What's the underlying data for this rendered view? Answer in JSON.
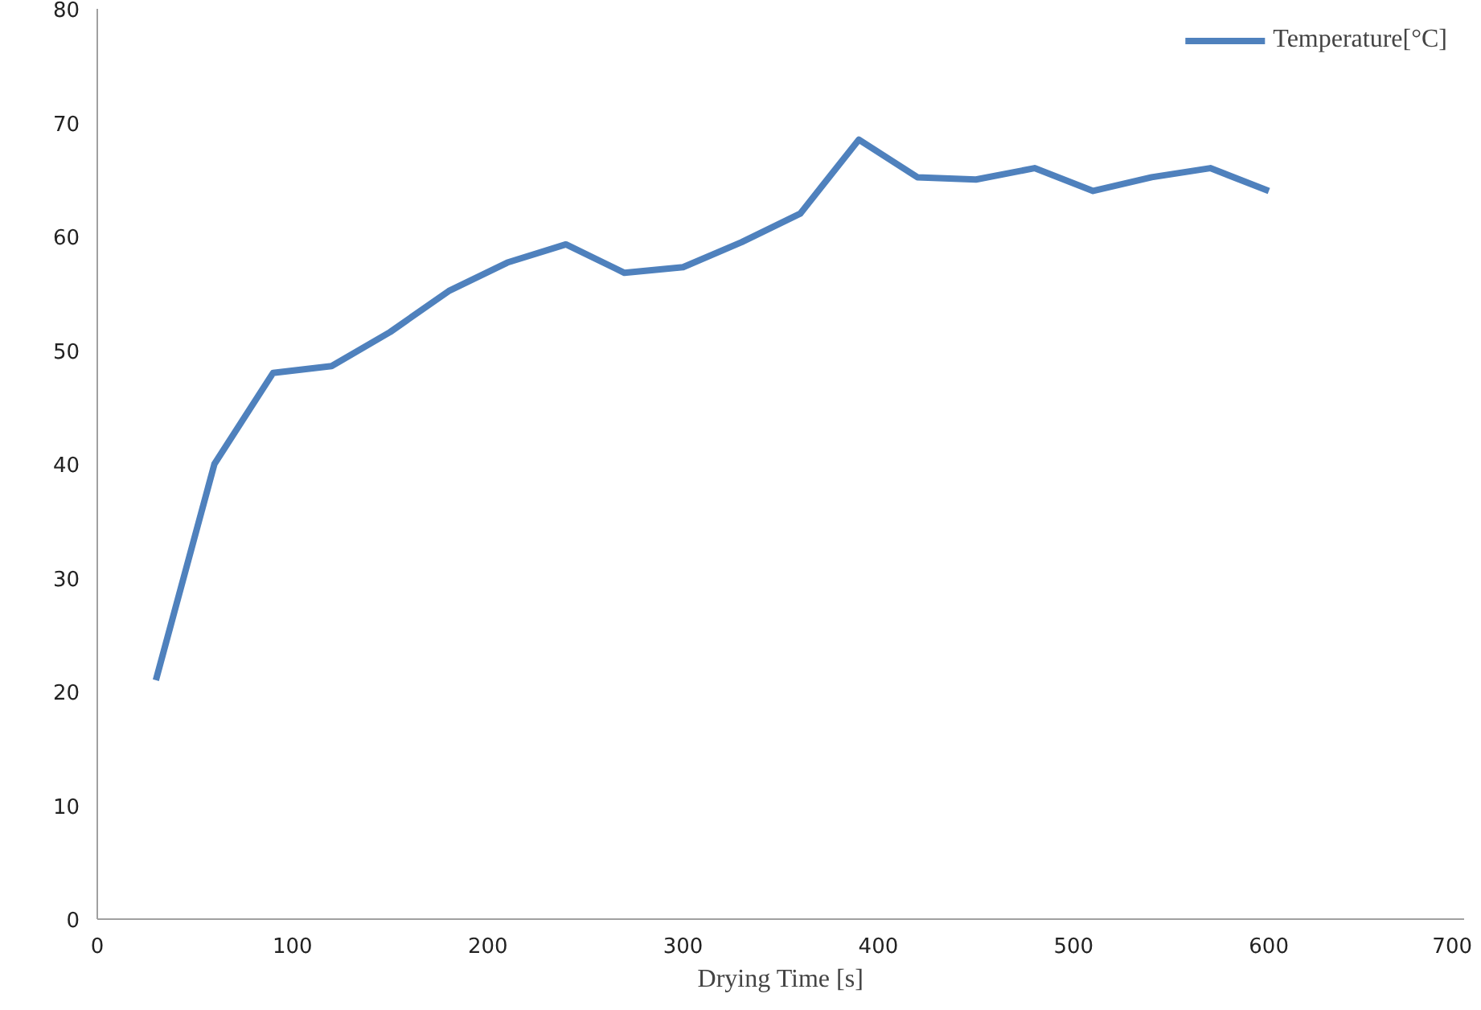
{
  "chart_data": {
    "type": "line",
    "xlabel": "Drying Time [s]",
    "x": [
      30,
      60,
      90,
      120,
      150,
      180,
      210,
      240,
      270,
      300,
      330,
      360,
      390,
      420,
      450,
      480,
      510,
      540,
      570,
      600
    ],
    "series": [
      {
        "name": "Temperature[°C]",
        "color": "#4f81bd",
        "values": [
          21,
          40,
          48,
          48.6,
          51.6,
          55.2,
          57.7,
          59.3,
          56.8,
          57.3,
          59.5,
          62,
          68.5,
          65.2,
          65,
          66,
          64,
          65.2,
          66,
          64
        ]
      }
    ],
    "xlim": [
      0,
      700
    ],
    "xticks": [
      0,
      100,
      200,
      300,
      400,
      500,
      600,
      700
    ],
    "ylim": [
      0,
      80
    ],
    "yticks": [
      0,
      10,
      20,
      30,
      40,
      50,
      60,
      70,
      80
    ],
    "grid": false,
    "legend": "top right",
    "marker": "none",
    "line_style": "solid"
  }
}
